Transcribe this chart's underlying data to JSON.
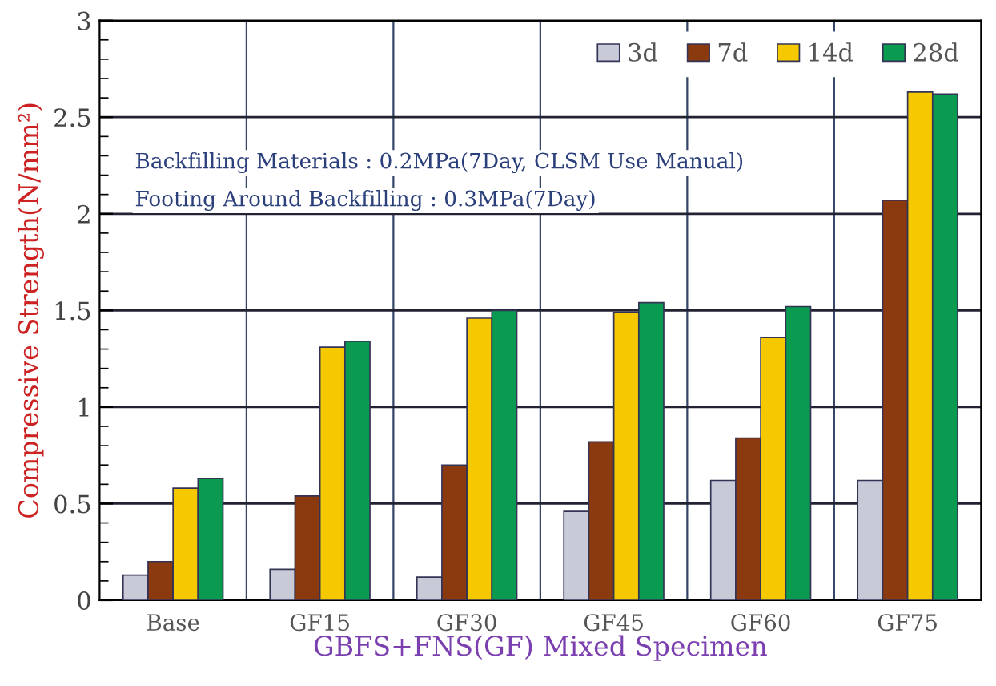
{
  "chart_data": {
    "type": "bar",
    "xlabel": "GBFS+FNS(GF) Mixed Specimen",
    "ylabel": "Compressive Strength(N/mm²)",
    "categories": [
      "Base",
      "GF15",
      "GF30",
      "GF45",
      "GF60",
      "GF75"
    ],
    "series": [
      {
        "name": "3d",
        "color": "#c8cad8",
        "values": [
          0.13,
          0.16,
          0.12,
          0.46,
          0.62,
          0.62
        ]
      },
      {
        "name": "7d",
        "color": "#8b3a10",
        "values": [
          0.2,
          0.54,
          0.7,
          0.82,
          0.84,
          2.07
        ]
      },
      {
        "name": "14d",
        "color": "#f5c800",
        "values": [
          0.58,
          1.31,
          1.46,
          1.49,
          1.36,
          2.63
        ]
      },
      {
        "name": "28d",
        "color": "#0a9a50",
        "values": [
          0.63,
          1.34,
          1.5,
          1.54,
          1.52,
          2.62
        ]
      }
    ],
    "annotations": [
      "Backfilling Materials : 0.2MPa(7Day, CLSM Use Manual)",
      "Footing Around Backfilling : 0.3MPa(7Day)"
    ],
    "ylim": [
      0,
      3
    ],
    "yticks": [
      0,
      0.5,
      1,
      1.5,
      2,
      2.5,
      3
    ],
    "grid": true,
    "legend": "top right"
  }
}
